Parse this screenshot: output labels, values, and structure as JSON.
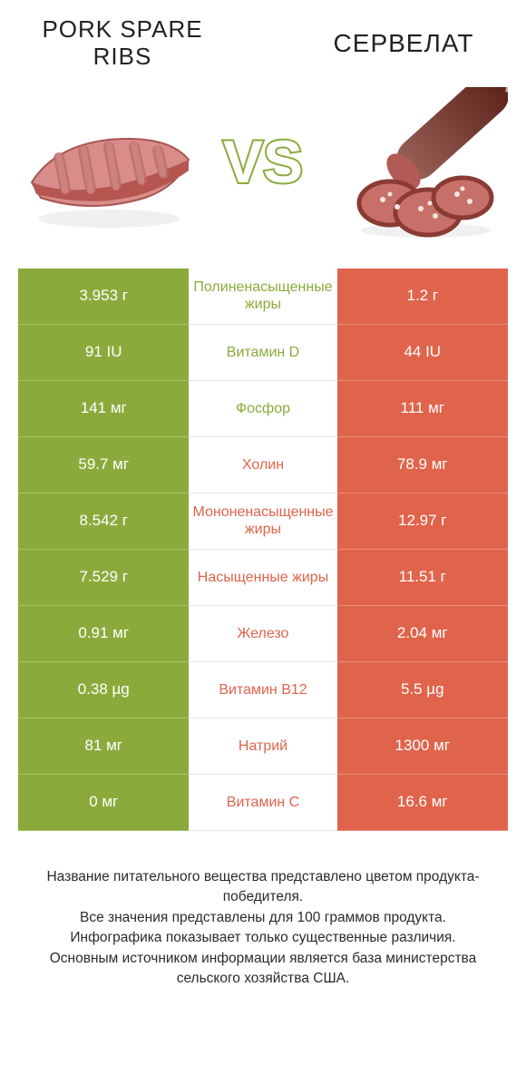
{
  "colors": {
    "left": "#8aab3b",
    "right": "#e0644c",
    "vs_stroke": "#8aab3b",
    "vs_fill": "#ffffff"
  },
  "header": {
    "left_title": "PORK SPARE RIBS",
    "right_title": "СЕРВЕЛАТ",
    "vs_text": "VS"
  },
  "rows": [
    {
      "label": "Полиненасыщенные жиры",
      "left": "3.953 г",
      "right": "1.2 г",
      "winner": "left"
    },
    {
      "label": "Витамин D",
      "left": "91 IU",
      "right": "44 IU",
      "winner": "left"
    },
    {
      "label": "Фосфор",
      "left": "141 мг",
      "right": "111 мг",
      "winner": "left"
    },
    {
      "label": "Холин",
      "left": "59.7 мг",
      "right": "78.9 мг",
      "winner": "right"
    },
    {
      "label": "Мононенасыщенные жиры",
      "left": "8.542 г",
      "right": "12.97 г",
      "winner": "right"
    },
    {
      "label": "Насыщенные жиры",
      "left": "7.529 г",
      "right": "11.51 г",
      "winner": "right"
    },
    {
      "label": "Железо",
      "left": "0.91 мг",
      "right": "2.04 мг",
      "winner": "right"
    },
    {
      "label": "Витамин B12",
      "left": "0.38 µg",
      "right": "5.5 µg",
      "winner": "right"
    },
    {
      "label": "Натрий",
      "left": "81 мг",
      "right": "1300 мг",
      "winner": "right"
    },
    {
      "label": "Витамин C",
      "left": "0 мг",
      "right": "16.6 мг",
      "winner": "right"
    }
  ],
  "footer_lines": [
    "Название питательного вещества представлено цветом продукта-победителя.",
    "Все значения представлены для 100 граммов продукта.",
    "Инфографика показывает только существенные различия.",
    "Основным источником информации является база министерства сельского хозяйства США."
  ]
}
